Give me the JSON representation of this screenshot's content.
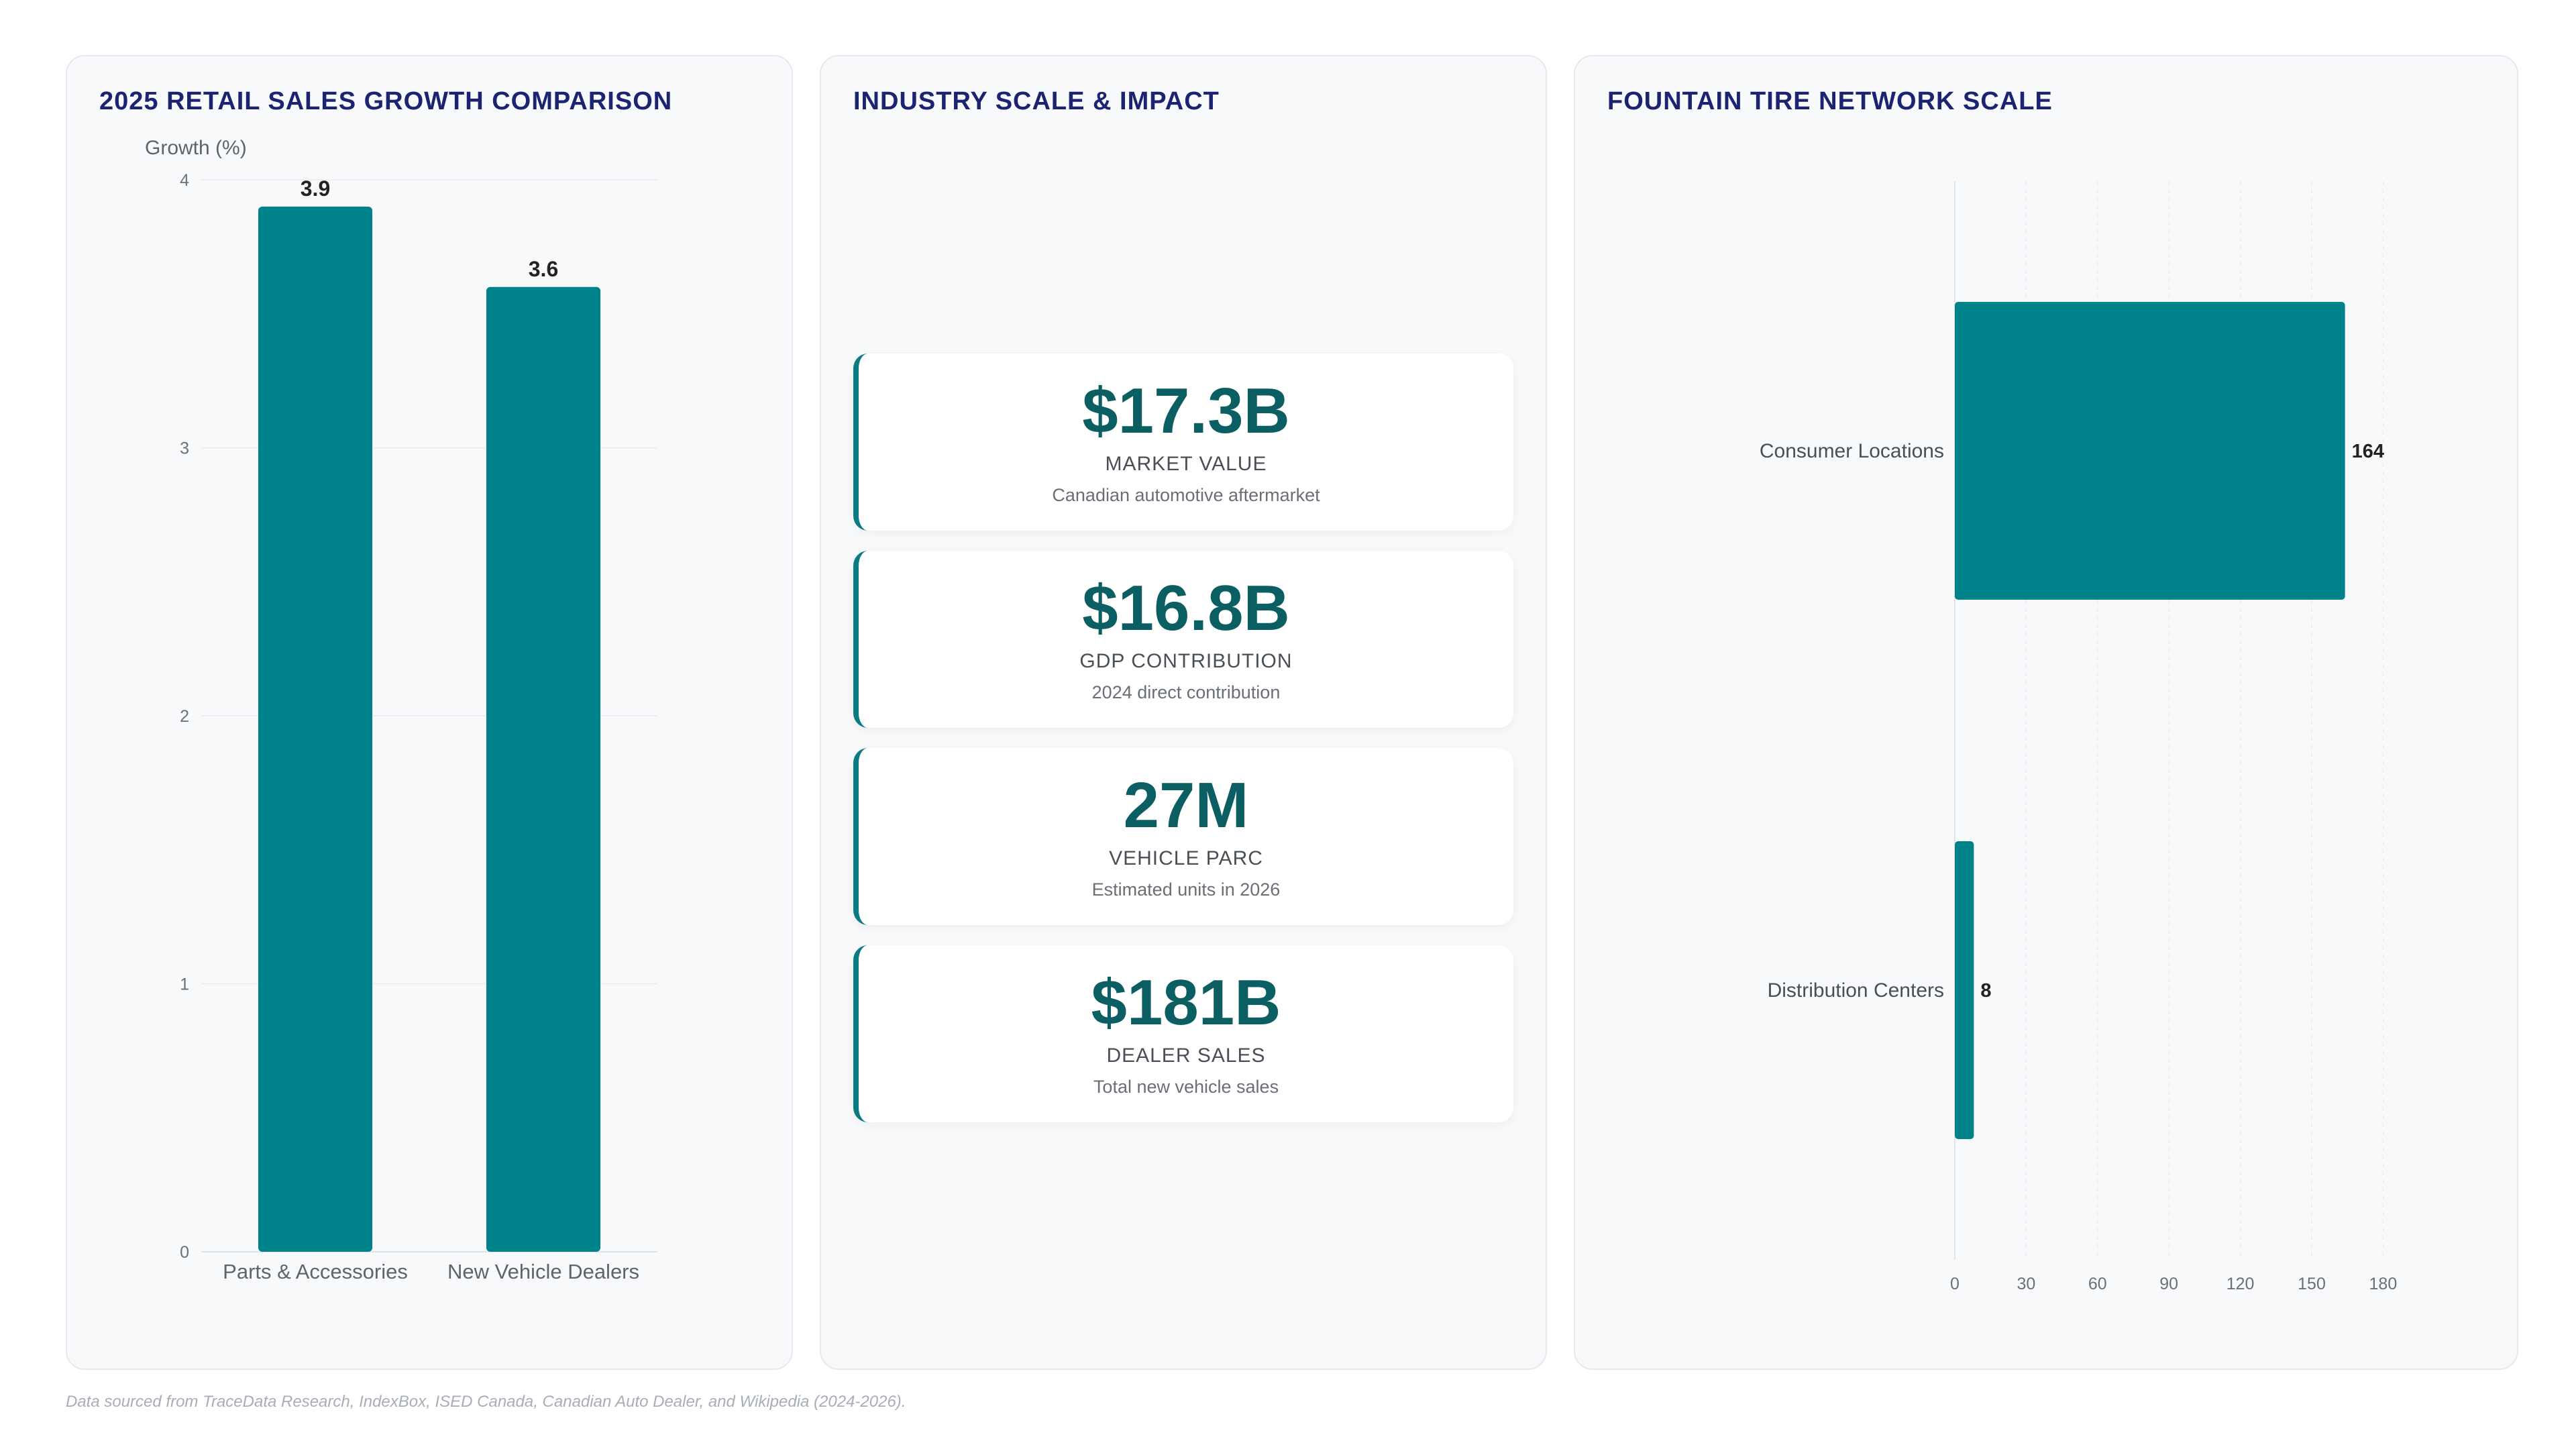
{
  "colors": {
    "bar": "#00828a",
    "title": "#1c2472",
    "metric": "#0b5f63"
  },
  "growth_panel": {
    "title": "2025 RETAIL SALES GROWTH COMPARISON"
  },
  "industry_panel": {
    "title": "INDUSTRY SCALE & IMPACT",
    "cards": [
      {
        "value": "$17.3B",
        "label": "MARKET VALUE",
        "sub": "Canadian automotive aftermarket"
      },
      {
        "value": "$16.8B",
        "label": "GDP CONTRIBUTION",
        "sub": "2024 direct contribution"
      },
      {
        "value": "27M",
        "label": "VEHICLE PARC",
        "sub": "Estimated units in 2026"
      },
      {
        "value": "$181B",
        "label": "DEALER SALES",
        "sub": "Total new vehicle sales"
      }
    ]
  },
  "network_panel": {
    "title": "FOUNTAIN TIRE NETWORK SCALE"
  },
  "footer": "Data sourced from TraceData Research, IndexBox, ISED Canada, Canadian Auto Dealer, and Wikipedia (2024-2026).",
  "chart_data": [
    {
      "type": "bar",
      "orientation": "vertical",
      "title": "2025 RETAIL SALES GROWTH COMPARISON",
      "ylabel": "Growth (%)",
      "categories": [
        "Parts & Accessories",
        "New Vehicle Dealers"
      ],
      "values": [
        3.9,
        3.6
      ],
      "ylim": [
        0,
        4
      ],
      "yticks": [
        0,
        1,
        2,
        3,
        4
      ],
      "data_labels": true,
      "grid": true
    },
    {
      "type": "bar",
      "orientation": "horizontal",
      "title": "FOUNTAIN TIRE NETWORK SCALE",
      "categories": [
        "Consumer Locations",
        "Distribution Centers"
      ],
      "values": [
        164,
        8
      ],
      "xlim": [
        0,
        180
      ],
      "xticks": [
        0,
        30,
        60,
        90,
        120,
        150,
        180
      ],
      "data_labels": true,
      "grid": true
    }
  ]
}
